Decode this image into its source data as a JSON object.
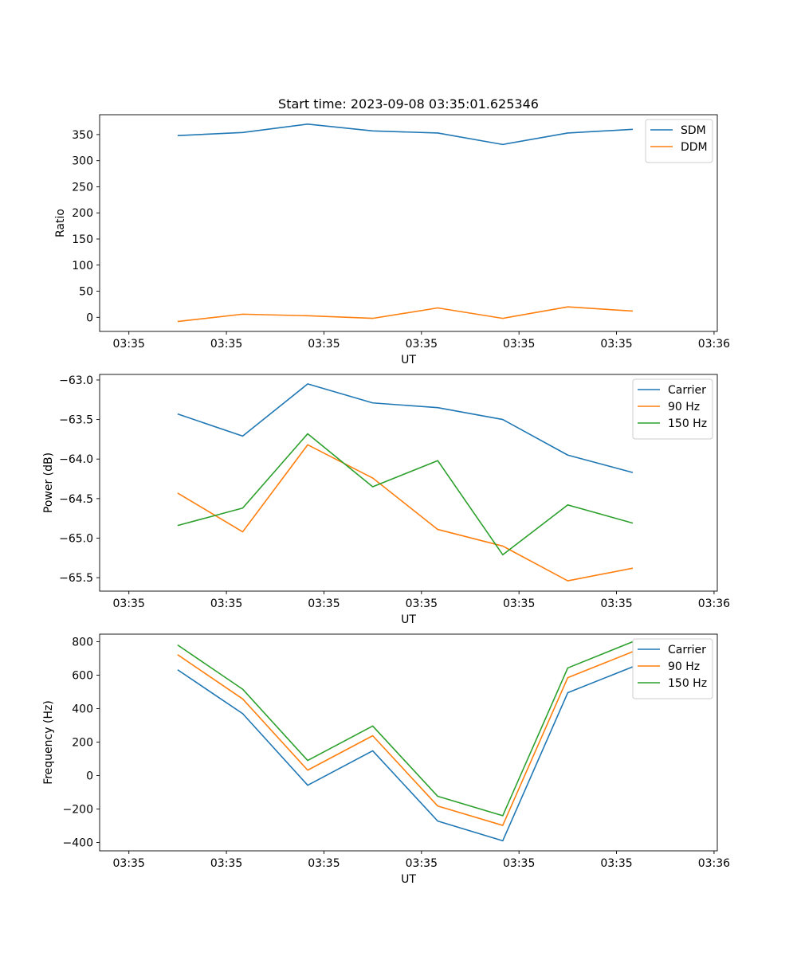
{
  "title": "Start time: 2023-09-08 03:35:01.625346",
  "xlabel": "UT",
  "xtick_labels": [
    "03:35",
    "03:35",
    "03:35",
    "03:35",
    "03:35",
    "03:35",
    "03:35"
  ],
  "xtick_last_label": "03:36",
  "chart_data": [
    {
      "type": "line",
      "ylabel": "Ratio",
      "ylim": [
        -27,
        388
      ],
      "yticks": [
        0,
        50,
        100,
        150,
        200,
        250,
        300,
        350
      ],
      "ytick_labels": [
        "0",
        "50",
        "100",
        "150",
        "200",
        "250",
        "300",
        "350"
      ],
      "legend": "top-right",
      "x": [
        1,
        2,
        3,
        4,
        5,
        6,
        7,
        8
      ],
      "series": [
        {
          "name": "SDM",
          "color": "#1f77b4",
          "values": [
            348,
            354,
            370,
            357,
            353,
            331,
            353,
            360
          ]
        },
        {
          "name": "DDM",
          "color": "#ff7f0e",
          "values": [
            -8,
            6,
            3,
            -2,
            18,
            -2,
            20,
            12
          ]
        }
      ]
    },
    {
      "type": "line",
      "ylabel": "Power (dB)",
      "ylim": [
        -65.67,
        -62.93
      ],
      "yticks": [
        -65.5,
        -65.0,
        -64.5,
        -64.0,
        -63.5,
        -63.0
      ],
      "ytick_labels": [
        "−65.5",
        "−65.0",
        "−64.5",
        "−64.0",
        "−63.5",
        "−63.0"
      ],
      "legend": "top-right",
      "x": [
        1,
        2,
        3,
        4,
        5,
        6,
        7,
        8
      ],
      "series": [
        {
          "name": "Carrier",
          "color": "#1f77b4",
          "values": [
            -63.43,
            -63.71,
            -63.05,
            -63.29,
            -63.35,
            -63.5,
            -63.95,
            -64.17
          ]
        },
        {
          "name": "90 Hz",
          "color": "#ff7f0e",
          "values": [
            -64.43,
            -64.92,
            -63.82,
            -64.24,
            -64.89,
            -65.1,
            -65.54,
            -65.38
          ]
        },
        {
          "name": "150 Hz",
          "color": "#2ca02c",
          "values": [
            -64.84,
            -64.62,
            -63.68,
            -64.35,
            -64.02,
            -65.21,
            -64.58,
            -64.81
          ]
        }
      ]
    },
    {
      "type": "line",
      "ylabel": "Frequency (Hz)",
      "ylim": [
        -450,
        845
      ],
      "yticks": [
        -400,
        -200,
        0,
        200,
        400,
        600,
        800
      ],
      "ytick_labels": [
        "−400",
        "−200",
        "0",
        "200",
        "400",
        "600",
        "800"
      ],
      "legend": "top-right",
      "x": [
        1,
        2,
        3,
        4,
        5,
        6,
        7,
        8
      ],
      "series": [
        {
          "name": "Carrier",
          "color": "#1f77b4",
          "values": [
            632,
            370,
            -58,
            148,
            -272,
            -390,
            495,
            650
          ]
        },
        {
          "name": "90 Hz",
          "color": "#ff7f0e",
          "values": [
            722,
            458,
            32,
            238,
            -182,
            -298,
            585,
            740
          ]
        },
        {
          "name": "150 Hz",
          "color": "#2ca02c",
          "values": [
            780,
            516,
            90,
            296,
            -124,
            -240,
            643,
            800
          ]
        }
      ]
    }
  ]
}
